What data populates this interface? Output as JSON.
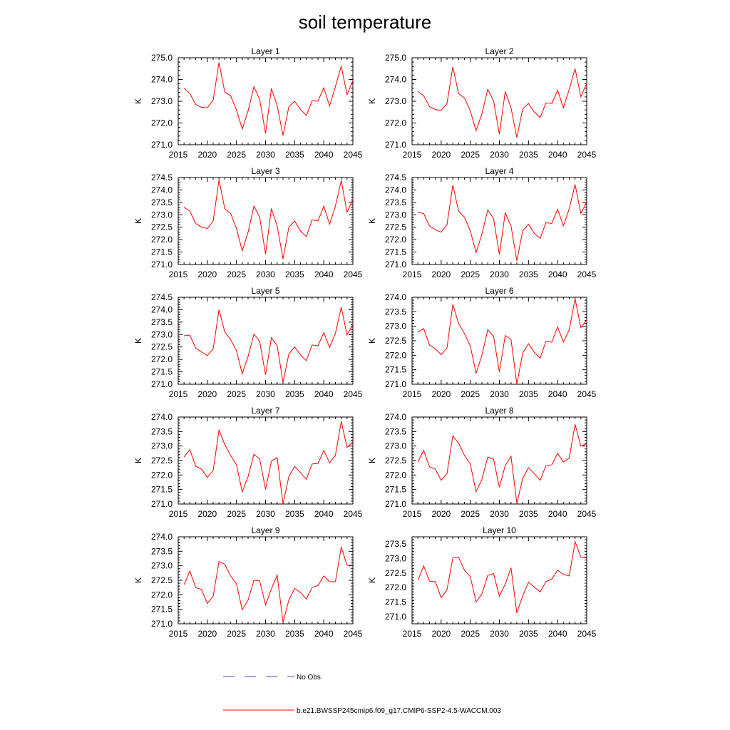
{
  "page_title": "soil temperature",
  "chart_data": [
    {
      "type": "line",
      "title": "Layer 1",
      "ylabel": "K",
      "xlim": [
        2015,
        2045
      ],
      "ylim": [
        271.0,
        275.0
      ],
      "yticks": [
        "271.0",
        "272.0",
        "273.0",
        "274.0",
        "275.0"
      ],
      "xticks": [
        "2015",
        "2020",
        "2025",
        "2030",
        "2035",
        "2040",
        "2045"
      ],
      "series": [
        {
          "x": [
            2016,
            2017,
            2018,
            2019,
            2020,
            2021,
            2022,
            2023,
            2024,
            2025,
            2026,
            2027,
            2028,
            2029,
            2030,
            2031,
            2032,
            2033,
            2034,
            2035,
            2036,
            2037,
            2038,
            2039,
            2040,
            2041,
            2042,
            2043,
            2044,
            2045
          ],
          "values": [
            273.6,
            273.35,
            272.85,
            272.72,
            272.7,
            273.05,
            274.78,
            273.42,
            273.25,
            272.6,
            271.72,
            272.55,
            273.67,
            273.08,
            271.52,
            273.58,
            272.8,
            271.42,
            272.75,
            273.0,
            272.62,
            272.35,
            273.02,
            273.0,
            273.62,
            272.78,
            273.68,
            274.62,
            273.3,
            273.95
          ]
        }
      ]
    },
    {
      "type": "line",
      "title": "Layer 2",
      "ylabel": "K",
      "xlim": [
        2015,
        2045
      ],
      "ylim": [
        271.0,
        275.0
      ],
      "yticks": [
        "271.0",
        "272.0",
        "273.0",
        "274.0",
        "275.0"
      ],
      "xticks": [
        "2015",
        "2020",
        "2025",
        "2030",
        "2035",
        "2040",
        "2045"
      ],
      "series": [
        {
          "x": [
            2016,
            2017,
            2018,
            2019,
            2020,
            2021,
            2022,
            2023,
            2024,
            2025,
            2026,
            2027,
            2028,
            2029,
            2030,
            2031,
            2032,
            2033,
            2034,
            2035,
            2036,
            2037,
            2038,
            2039,
            2040,
            2041,
            2042,
            2043,
            2044,
            2045
          ],
          "values": [
            273.45,
            273.25,
            272.75,
            272.62,
            272.58,
            272.9,
            274.58,
            273.35,
            273.15,
            272.55,
            271.65,
            272.42,
            273.55,
            273.02,
            271.48,
            273.45,
            272.7,
            271.32,
            272.65,
            272.9,
            272.5,
            272.25,
            272.92,
            272.9,
            273.5,
            272.7,
            273.55,
            274.5,
            273.2,
            273.82
          ]
        }
      ]
    },
    {
      "type": "line",
      "title": "Layer 3",
      "ylabel": "K",
      "xlim": [
        2015,
        2045
      ],
      "ylim": [
        271.0,
        274.5
      ],
      "yticks": [
        "271.0",
        "271.5",
        "272.0",
        "272.5",
        "273.0",
        "273.5",
        "274.0",
        "274.5"
      ],
      "xticks": [
        "2015",
        "2020",
        "2025",
        "2030",
        "2035",
        "2040",
        "2045"
      ],
      "series": [
        {
          "x": [
            2016,
            2017,
            2018,
            2019,
            2020,
            2021,
            2022,
            2023,
            2024,
            2025,
            2026,
            2027,
            2028,
            2029,
            2030,
            2031,
            2032,
            2033,
            2034,
            2035,
            2036,
            2037,
            2038,
            2039,
            2040,
            2041,
            2042,
            2043,
            2044,
            2045
          ],
          "values": [
            273.3,
            273.15,
            272.65,
            272.5,
            272.45,
            272.75,
            274.4,
            273.25,
            273.05,
            272.45,
            271.55,
            272.3,
            273.35,
            272.9,
            271.42,
            273.25,
            272.55,
            271.22,
            272.5,
            272.75,
            272.35,
            272.12,
            272.8,
            272.75,
            273.35,
            272.62,
            273.35,
            274.38,
            273.1,
            273.62
          ]
        }
      ]
    },
    {
      "type": "line",
      "title": "Layer 4",
      "ylabel": "K",
      "xlim": [
        2015,
        2045
      ],
      "ylim": [
        271.0,
        274.5
      ],
      "yticks": [
        "271.0",
        "271.5",
        "272.0",
        "272.5",
        "273.0",
        "273.5",
        "274.0",
        "274.5"
      ],
      "xticks": [
        "2015",
        "2020",
        "2025",
        "2030",
        "2035",
        "2040",
        "2045"
      ],
      "series": [
        {
          "x": [
            2016,
            2017,
            2018,
            2019,
            2020,
            2021,
            2022,
            2023,
            2024,
            2025,
            2026,
            2027,
            2028,
            2029,
            2030,
            2031,
            2032,
            2033,
            2034,
            2035,
            2036,
            2037,
            2038,
            2039,
            2040,
            2041,
            2042,
            2043,
            2044,
            2045
          ],
          "values": [
            273.1,
            273.05,
            272.55,
            272.4,
            272.3,
            272.6,
            274.2,
            273.15,
            272.9,
            272.35,
            271.48,
            272.22,
            273.2,
            272.85,
            271.4,
            273.08,
            272.55,
            271.15,
            272.35,
            272.62,
            272.25,
            272.05,
            272.68,
            272.65,
            273.22,
            272.55,
            273.25,
            274.22,
            273.05,
            273.52
          ]
        }
      ]
    },
    {
      "type": "line",
      "title": "Layer 5",
      "ylabel": "K",
      "xlim": [
        2015,
        2045
      ],
      "ylim": [
        271.0,
        274.5
      ],
      "yticks": [
        "271.0",
        "271.5",
        "272.0",
        "272.5",
        "273.0",
        "273.5",
        "274.0",
        "274.5"
      ],
      "xticks": [
        "2015",
        "2020",
        "2025",
        "2030",
        "2035",
        "2040",
        "2045"
      ],
      "series": [
        {
          "x": [
            2016,
            2017,
            2018,
            2019,
            2020,
            2021,
            2022,
            2023,
            2024,
            2025,
            2026,
            2027,
            2028,
            2029,
            2030,
            2031,
            2032,
            2033,
            2034,
            2035,
            2036,
            2037,
            2038,
            2039,
            2040,
            2041,
            2042,
            2043,
            2044,
            2045
          ],
          "values": [
            272.95,
            272.98,
            272.45,
            272.3,
            272.15,
            272.42,
            274.0,
            273.1,
            272.8,
            272.35,
            271.42,
            272.12,
            273.02,
            272.72,
            271.38,
            272.88,
            272.55,
            271.08,
            272.22,
            272.5,
            272.18,
            271.95,
            272.58,
            272.55,
            273.08,
            272.48,
            273.05,
            274.1,
            272.98,
            273.42
          ]
        }
      ]
    },
    {
      "type": "line",
      "title": "Layer 6",
      "ylabel": "K",
      "xlim": [
        2015,
        2045
      ],
      "ylim": [
        271.0,
        274.0
      ],
      "yticks": [
        "271.0",
        "271.5",
        "272.0",
        "272.5",
        "273.0",
        "273.5",
        "274.0"
      ],
      "xticks": [
        "2015",
        "2020",
        "2025",
        "2030",
        "2035",
        "2040",
        "2045"
      ],
      "series": [
        {
          "x": [
            2016,
            2017,
            2018,
            2019,
            2020,
            2021,
            2022,
            2023,
            2024,
            2025,
            2026,
            2027,
            2028,
            2029,
            2030,
            2031,
            2032,
            2033,
            2034,
            2035,
            2036,
            2037,
            2038,
            2039,
            2040,
            2041,
            2042,
            2043,
            2044,
            2045
          ],
          "values": [
            272.8,
            272.92,
            272.35,
            272.22,
            272.02,
            272.25,
            273.75,
            273.1,
            272.75,
            272.32,
            271.38,
            272.0,
            272.88,
            272.65,
            271.42,
            272.68,
            272.55,
            271.0,
            272.08,
            272.4,
            272.1,
            271.9,
            272.48,
            272.45,
            272.98,
            272.45,
            272.88,
            273.95,
            272.95,
            273.22
          ]
        }
      ]
    },
    {
      "type": "line",
      "title": "Layer 7",
      "ylabel": "K",
      "xlim": [
        2015,
        2045
      ],
      "ylim": [
        271.0,
        274.0
      ],
      "yticks": [
        "271.0",
        "271.5",
        "272.0",
        "272.5",
        "273.0",
        "273.5",
        "274.0"
      ],
      "xticks": [
        "2015",
        "2020",
        "2025",
        "2030",
        "2035",
        "2040",
        "2045"
      ],
      "series": [
        {
          "x": [
            2016,
            2017,
            2018,
            2019,
            2020,
            2021,
            2022,
            2023,
            2024,
            2025,
            2026,
            2027,
            2028,
            2029,
            2030,
            2031,
            2032,
            2033,
            2034,
            2035,
            2036,
            2037,
            2038,
            2039,
            2040,
            2041,
            2042,
            2043,
            2044,
            2045
          ],
          "values": [
            272.62,
            272.88,
            272.3,
            272.2,
            271.92,
            272.15,
            273.55,
            273.05,
            272.68,
            272.35,
            271.42,
            271.95,
            272.72,
            272.55,
            271.5,
            272.48,
            272.6,
            271.0,
            271.95,
            272.3,
            272.08,
            271.85,
            272.38,
            272.4,
            272.85,
            272.42,
            272.68,
            273.85,
            272.95,
            273.15
          ]
        }
      ]
    },
    {
      "type": "line",
      "title": "Layer 8",
      "ylabel": "K",
      "xlim": [
        2015,
        2045
      ],
      "ylim": [
        271.0,
        274.0
      ],
      "yticks": [
        "271.0",
        "271.5",
        "272.0",
        "272.5",
        "273.0",
        "273.5",
        "274.0"
      ],
      "xticks": [
        "2015",
        "2020",
        "2025",
        "2030",
        "2035",
        "2040",
        "2045"
      ],
      "series": [
        {
          "x": [
            2016,
            2017,
            2018,
            2019,
            2020,
            2021,
            2022,
            2023,
            2024,
            2025,
            2026,
            2027,
            2028,
            2029,
            2030,
            2031,
            2032,
            2033,
            2034,
            2035,
            2036,
            2037,
            2038,
            2039,
            2040,
            2041,
            2042,
            2043,
            2044,
            2045
          ],
          "values": [
            272.45,
            272.85,
            272.28,
            272.2,
            271.82,
            272.05,
            273.35,
            273.1,
            272.68,
            272.38,
            271.42,
            271.85,
            272.62,
            272.55,
            271.58,
            272.32,
            272.65,
            271.02,
            271.88,
            272.25,
            272.05,
            271.82,
            272.32,
            272.35,
            272.75,
            272.45,
            272.58,
            273.75,
            273.0,
            273.08
          ]
        }
      ]
    },
    {
      "type": "line",
      "title": "Layer 9",
      "ylabel": "K",
      "xlim": [
        2015,
        2045
      ],
      "ylim": [
        271.0,
        274.0
      ],
      "yticks": [
        "271.0",
        "271.5",
        "272.0",
        "272.5",
        "273.0",
        "273.5",
        "274.0"
      ],
      "xticks": [
        "2015",
        "2020",
        "2025",
        "2030",
        "2035",
        "2040",
        "2045"
      ],
      "series": [
        {
          "x": [
            2016,
            2017,
            2018,
            2019,
            2020,
            2021,
            2022,
            2023,
            2024,
            2025,
            2026,
            2027,
            2028,
            2029,
            2030,
            2031,
            2032,
            2033,
            2034,
            2035,
            2036,
            2037,
            2038,
            2039,
            2040,
            2041,
            2042,
            2043,
            2044,
            2045
          ],
          "values": [
            272.35,
            272.82,
            272.25,
            272.18,
            271.7,
            271.95,
            273.15,
            273.05,
            272.65,
            272.38,
            271.48,
            271.82,
            272.5,
            272.48,
            271.65,
            272.2,
            272.68,
            271.05,
            271.82,
            272.22,
            272.08,
            271.85,
            272.25,
            272.32,
            272.65,
            272.45,
            272.45,
            273.65,
            273.02,
            273.02
          ]
        }
      ]
    },
    {
      "type": "line",
      "title": "Layer 10",
      "ylabel": "K",
      "xlim": [
        2015,
        2045
      ],
      "ylim": [
        270.75,
        273.75
      ],
      "yticks": [
        "271.0",
        "271.5",
        "272.0",
        "272.5",
        "273.0",
        "273.5"
      ],
      "xticks": [
        "2015",
        "2020",
        "2025",
        "2030",
        "2035",
        "2040",
        "2045"
      ],
      "series": [
        {
          "x": [
            2016,
            2017,
            2018,
            2019,
            2020,
            2021,
            2022,
            2023,
            2024,
            2025,
            2026,
            2027,
            2028,
            2029,
            2030,
            2031,
            2032,
            2033,
            2034,
            2035,
            2036,
            2037,
            2038,
            2039,
            2040,
            2041,
            2042,
            2043,
            2044,
            2045
          ],
          "values": [
            272.25,
            272.75,
            272.22,
            272.2,
            271.65,
            271.92,
            273.02,
            273.05,
            272.6,
            272.38,
            271.5,
            271.78,
            272.42,
            272.48,
            271.7,
            272.12,
            272.68,
            271.12,
            271.72,
            272.18,
            272.02,
            271.85,
            272.2,
            272.3,
            272.6,
            272.45,
            272.4,
            273.58,
            273.05,
            273.02
          ]
        }
      ]
    }
  ],
  "legend": {
    "entries": [
      {
        "label": "No Obs",
        "style": "dashed",
        "color": "#3b4fcf"
      },
      {
        "label": "b.e21.BWSSP245cmip6.f09_g17.CMIP6-SSP2-4.5-WACCM.003",
        "style": "solid",
        "color": "#ff0000"
      }
    ]
  }
}
